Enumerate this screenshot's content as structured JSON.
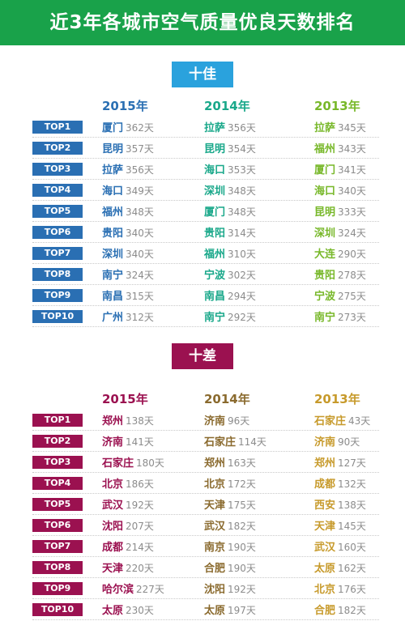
{
  "title": "近3年各城市空气质量优良天数排名",
  "best": {
    "label": "十佳",
    "years": [
      "2015年",
      "2014年",
      "2013年"
    ],
    "colors": [
      "#2a6fb3",
      "#19a88a",
      "#78b82a"
    ],
    "rows": [
      {
        "rank": "TOP1",
        "cells": [
          {
            "city": "厦门",
            "days": "362天"
          },
          {
            "city": "拉萨",
            "days": "356天"
          },
          {
            "city": "拉萨",
            "days": "345天"
          }
        ]
      },
      {
        "rank": "TOP2",
        "cells": [
          {
            "city": "昆明",
            "days": "357天"
          },
          {
            "city": "昆明",
            "days": "354天"
          },
          {
            "city": "福州",
            "days": "343天"
          }
        ]
      },
      {
        "rank": "TOP3",
        "cells": [
          {
            "city": "拉萨",
            "days": "356天"
          },
          {
            "city": "海口",
            "days": "353天"
          },
          {
            "city": "厦门",
            "days": "341天"
          }
        ]
      },
      {
        "rank": "TOP4",
        "cells": [
          {
            "city": "海口",
            "days": "349天"
          },
          {
            "city": "深圳",
            "days": "348天"
          },
          {
            "city": "海口",
            "days": "340天"
          }
        ]
      },
      {
        "rank": "TOP5",
        "cells": [
          {
            "city": "福州",
            "days": "348天"
          },
          {
            "city": "厦门",
            "days": "348天"
          },
          {
            "city": "昆明",
            "days": "333天"
          }
        ]
      },
      {
        "rank": "TOP6",
        "cells": [
          {
            "city": "贵阳",
            "days": "340天"
          },
          {
            "city": "贵阳",
            "days": "314天"
          },
          {
            "city": "深圳",
            "days": "324天"
          }
        ]
      },
      {
        "rank": "TOP7",
        "cells": [
          {
            "city": "深圳",
            "days": "340天"
          },
          {
            "city": "福州",
            "days": "310天"
          },
          {
            "city": "大连",
            "days": "290天"
          }
        ]
      },
      {
        "rank": "TOP8",
        "cells": [
          {
            "city": "南宁",
            "days": "324天"
          },
          {
            "city": "宁波",
            "days": "302天"
          },
          {
            "city": "贵阳",
            "days": "278天"
          }
        ]
      },
      {
        "rank": "TOP9",
        "cells": [
          {
            "city": "南昌",
            "days": "315天"
          },
          {
            "city": "南昌",
            "days": "294天"
          },
          {
            "city": "宁波",
            "days": "275天"
          }
        ]
      },
      {
        "rank": "TOP10",
        "cells": [
          {
            "city": "广州",
            "days": "312天"
          },
          {
            "city": "南宁",
            "days": "292天"
          },
          {
            "city": "南宁",
            "days": "273天"
          }
        ]
      }
    ]
  },
  "worst": {
    "label": "十差",
    "years": [
      "2015年",
      "2014年",
      "2013年"
    ],
    "colors": [
      "#9b1150",
      "#8a6a2e",
      "#c79a2b"
    ],
    "rows": [
      {
        "rank": "TOP1",
        "cells": [
          {
            "city": "郑州",
            "days": "138天"
          },
          {
            "city": "济南",
            "days": "96天"
          },
          {
            "city": "石家庄",
            "days": "43天"
          }
        ]
      },
      {
        "rank": "TOP2",
        "cells": [
          {
            "city": "济南",
            "days": "141天"
          },
          {
            "city": "石家庄",
            "days": "114天"
          },
          {
            "city": "济南",
            "days": "90天"
          }
        ]
      },
      {
        "rank": "TOP3",
        "cells": [
          {
            "city": "石家庄",
            "days": "180天"
          },
          {
            "city": "郑州",
            "days": "163天"
          },
          {
            "city": "郑州",
            "days": "127天"
          }
        ]
      },
      {
        "rank": "TOP4",
        "cells": [
          {
            "city": "北京",
            "days": "186天"
          },
          {
            "city": "北京",
            "days": "172天"
          },
          {
            "city": "成都",
            "days": "132天"
          }
        ]
      },
      {
        "rank": "TOP5",
        "cells": [
          {
            "city": "武汉",
            "days": "192天"
          },
          {
            "city": "天津",
            "days": "175天"
          },
          {
            "city": "西安",
            "days": "138天"
          }
        ]
      },
      {
        "rank": "TOP6",
        "cells": [
          {
            "city": "沈阳",
            "days": "207天"
          },
          {
            "city": "武汉",
            "days": "182天"
          },
          {
            "city": "天津",
            "days": "145天"
          }
        ]
      },
      {
        "rank": "TOP7",
        "cells": [
          {
            "city": "成都",
            "days": "214天"
          },
          {
            "city": "南京",
            "days": "190天"
          },
          {
            "city": "武汉",
            "days": "160天"
          }
        ]
      },
      {
        "rank": "TOP8",
        "cells": [
          {
            "city": "天津",
            "days": "220天"
          },
          {
            "city": "合肥",
            "days": "190天"
          },
          {
            "city": "太原",
            "days": "162天"
          }
        ]
      },
      {
        "rank": "TOP9",
        "cells": [
          {
            "city": "哈尔滨",
            "days": "227天"
          },
          {
            "city": "沈阳",
            "days": "192天"
          },
          {
            "city": "北京",
            "days": "176天"
          }
        ]
      },
      {
        "rank": "TOP10",
        "cells": [
          {
            "city": "太原",
            "days": "230天"
          },
          {
            "city": "太原",
            "days": "197天"
          },
          {
            "city": "合肥",
            "days": "182天"
          }
        ]
      }
    ]
  }
}
